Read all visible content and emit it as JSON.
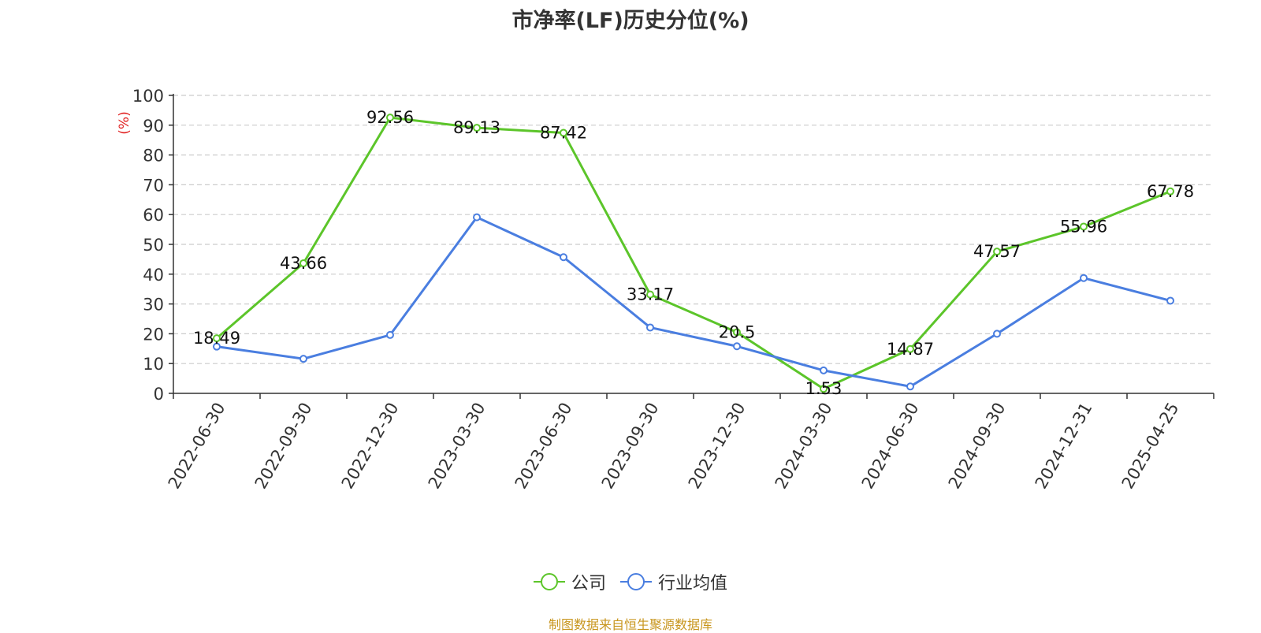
{
  "chart_data": {
    "type": "line",
    "title": "市净率(LF)历史分位(%)",
    "ylabel": "(%)",
    "ylim": [
      0,
      100
    ],
    "yticks": [
      "0",
      "10",
      "20",
      "30",
      "40",
      "50",
      "60",
      "70",
      "80",
      "90",
      "100"
    ],
    "categories": [
      "2022-06-30",
      "2022-09-30",
      "2022-12-30",
      "2023-03-30",
      "2023-06-30",
      "2023-09-30",
      "2023-12-30",
      "2024-03-30",
      "2024-06-30",
      "2024-09-30",
      "2024-12-31",
      "2025-04-25"
    ],
    "series": [
      {
        "name": "公司",
        "color": "#5cc52a",
        "values": [
          18.49,
          43.66,
          92.56,
          89.13,
          87.42,
          33.17,
          20.5,
          1.53,
          14.87,
          47.57,
          55.96,
          67.78
        ],
        "labels": [
          "18.49",
          "43.66",
          "92.56",
          "89.13",
          "87.42",
          "33.17",
          "20.5",
          "1.53",
          "14.87",
          "47.57",
          "55.96",
          "67.78"
        ]
      },
      {
        "name": "行业均值",
        "color": "#4a7ee0",
        "values": [
          15.7,
          11.6,
          19.6,
          59.1,
          45.7,
          22.1,
          15.8,
          7.7,
          2.3,
          20.0,
          38.7,
          31.1
        ]
      }
    ],
    "grid": true,
    "legend_position": "bottom-center",
    "source": "制图数据来自恒生聚源数据库"
  }
}
